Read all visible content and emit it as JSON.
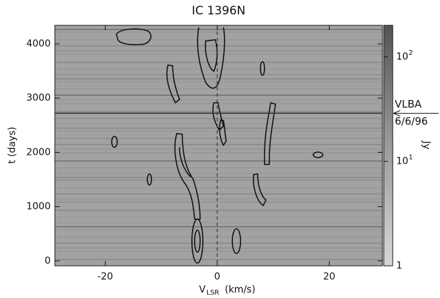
{
  "chart_data": {
    "type": "heatmap",
    "title": "IC 1396N",
    "xlabel": "V",
    "xlabel_subscript": "LSR",
    "xlabel_unit": "(km/s)",
    "ylabel": "t (days)",
    "xlim": [
      -29,
      29.5
    ],
    "xticks": [
      -20,
      0,
      20
    ],
    "ylim": [
      -90,
      4340
    ],
    "yticks": [
      0,
      1000,
      2000,
      3000,
      4000
    ],
    "reference_x": 0,
    "colorbar": {
      "label": "Jy",
      "log": true,
      "clim": [
        1,
        200
      ],
      "ticks": [
        {
          "value": 1,
          "label": "1"
        },
        {
          "value": 10,
          "label": "10",
          "exponent": "1"
        },
        {
          "value": 100,
          "label": "10",
          "exponent": "2"
        }
      ]
    },
    "annotation": {
      "lines": [
        "VLBA",
        "6/6/96"
      ],
      "t": 2720
    }
  }
}
